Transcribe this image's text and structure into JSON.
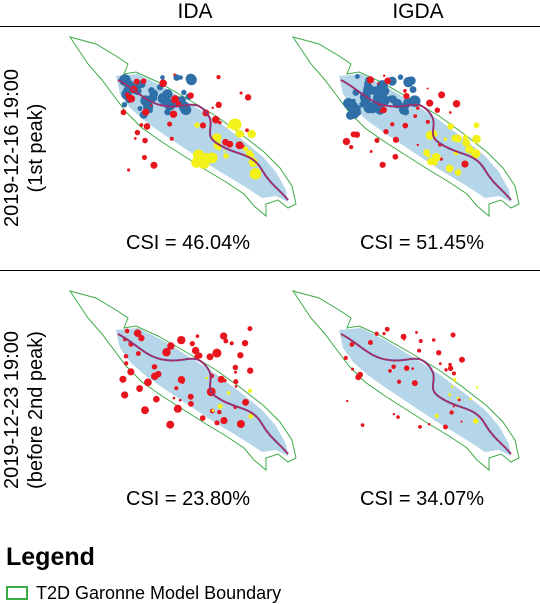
{
  "columns": [
    "IDA",
    "IGDA"
  ],
  "rows": [
    {
      "date_label": "2019-12-16 19:00",
      "sub_label": "(1st peak)",
      "csi": [
        "CSI = 46.04%",
        "CSI = 51.45%"
      ]
    },
    {
      "date_label": "2019-12-23 19:00",
      "sub_label": "(before 2nd peak)",
      "csi": [
        "CSI = 23.80%",
        "CSI = 34.07%"
      ]
    }
  ],
  "legend": {
    "title": "Legend",
    "items": [
      {
        "label": "T2D Garonne Model Boundary",
        "color": "#3dab48"
      }
    ]
  },
  "colors": {
    "boundary": "#3dab48",
    "flood_light": "#b5d5e8",
    "flood_dark": "#2f6fa8",
    "red": "#e8141e",
    "yellow": "#f2f21a",
    "purple": "#7b3f8f"
  }
}
